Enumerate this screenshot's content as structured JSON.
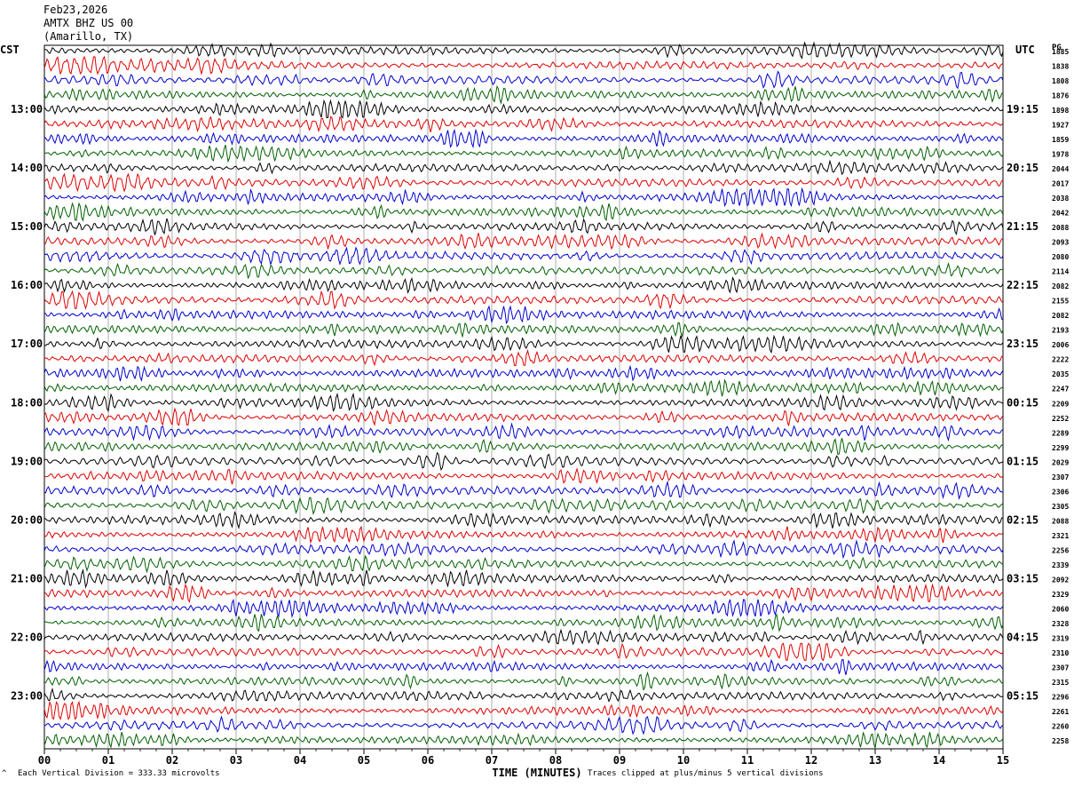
{
  "header": {
    "date": "Feb23,2026",
    "station": "AMTX BHZ US 00",
    "location": "(Amarillo, TX)"
  },
  "left_zone": "CST",
  "right_zone": "UTC",
  "right_header": "PG",
  "footer": {
    "scale_note": "Each Vertical Division =  333.33 microvolts",
    "clip_note": "Traces clipped at plus/minus 5 vertical divisions",
    "corner_mark": "^"
  },
  "colors": [
    "#000000",
    "#e00000",
    "#0000d0",
    "#006000"
  ],
  "chart_data": {
    "type": "line",
    "title": "",
    "xlabel": "TIME (MINUTES)",
    "ylabel": "",
    "xlim": [
      0,
      15
    ],
    "x_ticks": [
      "00",
      "01",
      "02",
      "03",
      "04",
      "05",
      "06",
      "07",
      "08",
      "09",
      "10",
      "11",
      "12",
      "13",
      "14",
      "15"
    ],
    "grid": "vertical",
    "trace_count": 48,
    "left_hour_labels": [
      "13:00",
      "14:00",
      "15:00",
      "16:00",
      "17:00",
      "18:00",
      "19:00",
      "20:00",
      "21:00",
      "22:00",
      "23:00"
    ],
    "right_hour_labels": [
      "19:15",
      "20:15",
      "21:15",
      "22:15",
      "23:15",
      "00:15",
      "01:15",
      "02:15",
      "03:15",
      "04:15",
      "05:15"
    ],
    "trace_offsets": [
      "1885",
      "1838",
      "1808",
      "1876",
      "1898",
      "1927",
      "1859",
      "1978",
      "2044",
      "2017",
      "2038",
      "2042",
      "2088",
      "2093",
      "2080",
      "2114",
      "2082",
      "2155",
      "2082",
      "2193",
      "2006",
      "2222",
      "2035",
      "2247",
      "2209",
      "2252",
      "2289",
      "2299",
      "2029",
      "2307",
      "2306",
      "2305",
      "2088",
      "2321",
      "2256",
      "2339",
      "2092",
      "2329",
      "2060",
      "2328",
      "2319",
      "2310",
      "2307",
      "2315",
      "2296",
      "2261",
      "2260",
      "2258"
    ]
  }
}
